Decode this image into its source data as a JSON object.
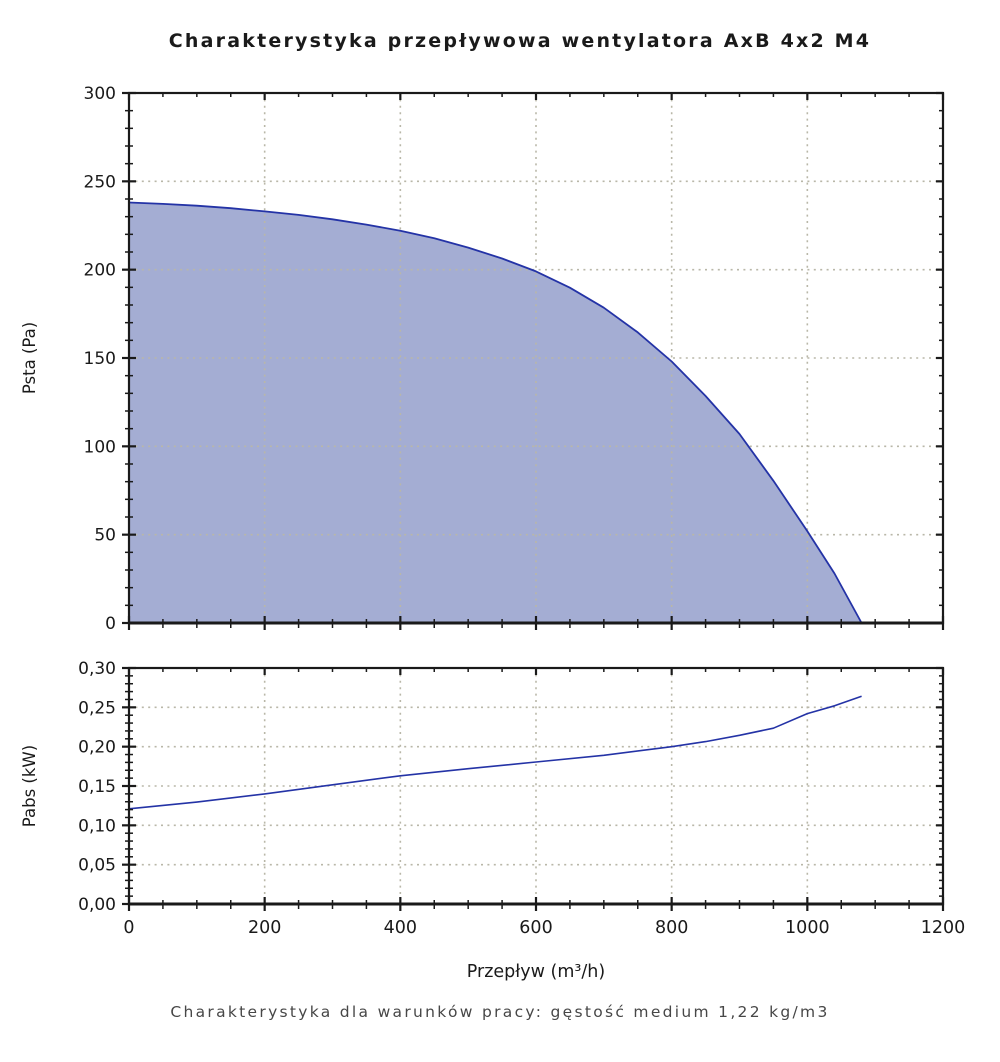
{
  "title": "Charakterystyka przepływowa wentylatora AxB 4x2 M4",
  "caption": "Charakterystyka dla warunków pracy: gęstość medium 1,22 kg/m3",
  "xlabel": "Przepływ (m³/h)",
  "x_tick_labels": [
    "0",
    "200",
    "400",
    "600",
    "800",
    "1000",
    "1200"
  ],
  "colors": {
    "line": "#2433a6",
    "fill": "#a4add3",
    "grid": "#b9b7a8",
    "axis": "#1a1a1a",
    "text": "#1a1a1a",
    "caption_text": "#474747"
  },
  "chart_data": [
    {
      "type": "area",
      "name": "psta-curve",
      "ylabel": "Psta (Pa)",
      "xlabel": "Przepływ (m³/h)",
      "x_range": [
        0,
        1200
      ],
      "x_major": 200,
      "x_minor": 50,
      "y_range": [
        0,
        300
      ],
      "y_major": 50,
      "y_minor": 10,
      "y_tick_labels": [
        "0",
        "50",
        "100",
        "150",
        "200",
        "250",
        "300"
      ],
      "grid": true,
      "points": [
        [
          0,
          238
        ],
        [
          50,
          237.2
        ],
        [
          100,
          236.2
        ],
        [
          150,
          234.8
        ],
        [
          200,
          233
        ],
        [
          250,
          231
        ],
        [
          300,
          228.5
        ],
        [
          350,
          225.5
        ],
        [
          400,
          222
        ],
        [
          450,
          217.8
        ],
        [
          500,
          212.5
        ],
        [
          550,
          206.3
        ],
        [
          600,
          199
        ],
        [
          650,
          189.8
        ],
        [
          700,
          178.5
        ],
        [
          750,
          164.5
        ],
        [
          800,
          148
        ],
        [
          850,
          128.5
        ],
        [
          900,
          107
        ],
        [
          950,
          80.5
        ],
        [
          1000,
          52
        ],
        [
          1040,
          28
        ],
        [
          1080,
          0
        ]
      ]
    },
    {
      "type": "line",
      "name": "pabs-curve",
      "ylabel": "Pabs (kW)",
      "xlabel": "Przepływ (m³/h)",
      "x_range": [
        0,
        1200
      ],
      "x_major": 200,
      "x_minor": 50,
      "y_range": [
        0,
        0.3
      ],
      "y_major": 0.05,
      "y_minor": 0.01,
      "y_tick_labels": [
        "0,00",
        "0,05",
        "0,10",
        "0,15",
        "0,20",
        "0,25",
        "0,30"
      ],
      "grid": true,
      "points": [
        [
          0,
          0.121
        ],
        [
          100,
          0.1295
        ],
        [
          200,
          0.14
        ],
        [
          300,
          0.1515
        ],
        [
          400,
          0.163
        ],
        [
          500,
          0.172
        ],
        [
          600,
          0.1805
        ],
        [
          700,
          0.189
        ],
        [
          800,
          0.2
        ],
        [
          850,
          0.2065
        ],
        [
          900,
          0.2145
        ],
        [
          950,
          0.2235
        ],
        [
          1000,
          0.242
        ],
        [
          1040,
          0.252
        ],
        [
          1080,
          0.264
        ]
      ]
    }
  ]
}
